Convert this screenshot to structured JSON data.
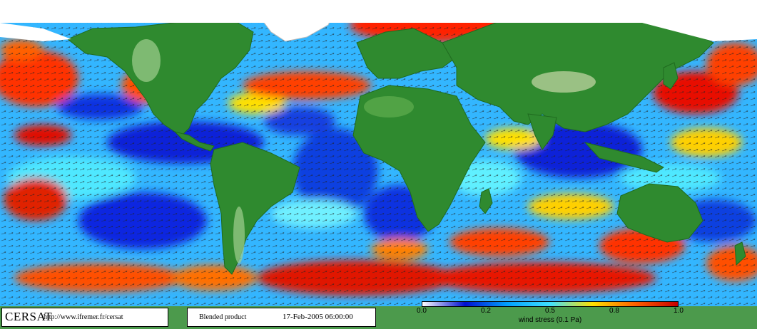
{
  "credit": {
    "logo": "CERSAT",
    "url": "http://www.ifremer.fr/cersat"
  },
  "product": {
    "name": "Blended product",
    "date": "17-Feb-2005 06:00:00"
  },
  "colorbar": {
    "ticks": [
      "0.0",
      "0.2",
      "0.5",
      "0.8",
      "1.0"
    ],
    "label": "wind stress (0.1 Pa)",
    "colors": [
      "#ffffff",
      "#0010d0",
      "#00a0ff",
      "#40e0ff",
      "#ffe000",
      "#ff6000",
      "#c80000"
    ]
  },
  "map": {
    "land_color": "#2f8a2f",
    "ice_color": "#ffffff"
  }
}
